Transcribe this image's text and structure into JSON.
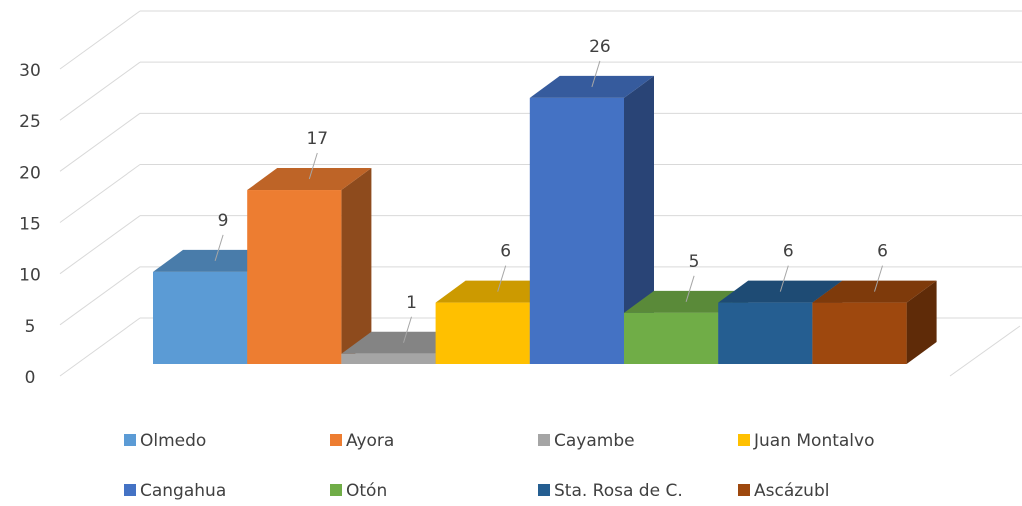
{
  "chart_data": {
    "type": "bar",
    "series": [
      {
        "name": "Olmedo",
        "color": "#5b9bd5",
        "values": [
          9
        ]
      },
      {
        "name": "Ayora",
        "color": "#ed7d31",
        "values": [
          17
        ]
      },
      {
        "name": "Cayambe",
        "color": "#a5a5a5",
        "values": [
          1
        ]
      },
      {
        "name": "Juan Montalvo",
        "color": "#ffc000",
        "values": [
          6
        ]
      },
      {
        "name": "Cangahua",
        "color": "#4472c4",
        "values": [
          26
        ]
      },
      {
        "name": "Otón",
        "color": "#70ad47",
        "values": [
          5
        ]
      },
      {
        "name": "Sta. Rosa de C.",
        "color": "#255e91",
        "values": [
          6
        ]
      },
      {
        "name": "Ascázubl",
        "color": "#9e480e",
        "values": [
          6
        ]
      }
    ],
    "ylim": [
      0,
      30
    ],
    "yticks": [
      0,
      5,
      10,
      15,
      20,
      25,
      30
    ],
    "grid": true
  }
}
